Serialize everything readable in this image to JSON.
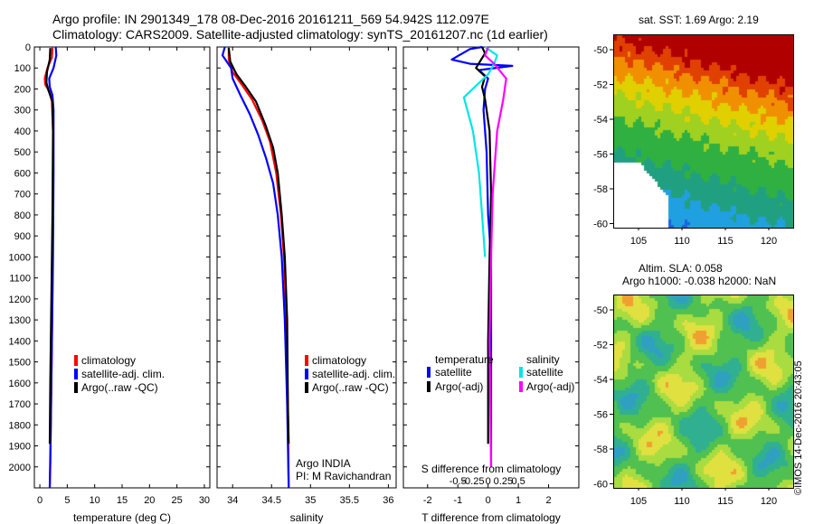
{
  "header": {
    "line1": "Argo profile: IN 2901349_178 08-Dec-2016 20161211_569 54.942S 112.097E",
    "line2": "Climatology: CARS2009. Satellite-adjusted climatology: synTS_20161207.nc (1d earlier)"
  },
  "colors": {
    "clim": "#ff0000",
    "sat": "#0000ff",
    "argo": "#000000",
    "sat_s": "#00e5e5",
    "argo_s": "#ff00ff"
  },
  "chart_data": [
    {
      "type": "line",
      "panel": "temperature",
      "xlabel": "temperature (deg C)",
      "xlim": [
        -1,
        31
      ],
      "ylim": [
        2100,
        0
      ],
      "xticks": [
        0,
        5,
        10,
        15,
        20,
        25,
        30
      ],
      "yticks": [
        0,
        100,
        200,
        300,
        400,
        500,
        600,
        700,
        800,
        900,
        1000,
        1100,
        1200,
        1300,
        1400,
        1500,
        1600,
        1700,
        1800,
        1900,
        2000
      ],
      "legend": [
        "climatology",
        "satellite-adj. clim.",
        "Argo(..raw -QC)"
      ],
      "series": [
        {
          "name": "climatology",
          "color": "#ff0000",
          "points": [
            [
              2.3,
              0
            ],
            [
              2.2,
              50
            ],
            [
              1.4,
              100
            ],
            [
              0.9,
              150
            ],
            [
              1.0,
              180
            ],
            [
              1.7,
              210
            ],
            [
              2.2,
              260
            ],
            [
              2.4,
              400
            ],
            [
              2.4,
              800
            ],
            [
              2.3,
              1200
            ],
            [
              2.1,
              1600
            ],
            [
              1.9,
              2000
            ],
            [
              1.8,
              2100
            ]
          ]
        },
        {
          "name": "satellite-adj. clim.",
          "color": "#0000ff",
          "points": [
            [
              2.9,
              0
            ],
            [
              3.0,
              40
            ],
            [
              2.5,
              100
            ],
            [
              1.7,
              150
            ],
            [
              1.8,
              190
            ],
            [
              2.3,
              230
            ],
            [
              2.5,
              300
            ],
            [
              2.5,
              600
            ],
            [
              2.4,
              1000
            ],
            [
              2.2,
              1400
            ],
            [
              2.0,
              1800
            ],
            [
              1.8,
              2100
            ]
          ]
        },
        {
          "name": "Argo(..raw -QC)",
          "color": "#000000",
          "points": [
            [
              1.9,
              5
            ],
            [
              1.8,
              60
            ],
            [
              1.3,
              120
            ],
            [
              1.2,
              170
            ],
            [
              1.6,
              210
            ],
            [
              2.3,
              260
            ],
            [
              2.4,
              400
            ],
            [
              2.3,
              800
            ],
            [
              2.1,
              1200
            ],
            [
              1.9,
              1600
            ],
            [
              1.8,
              1890
            ]
          ]
        }
      ]
    },
    {
      "type": "line",
      "panel": "salinity",
      "xlabel": "salinity",
      "xlim": [
        33.8,
        36.1
      ],
      "ylim": [
        2100,
        0
      ],
      "xticks": [
        34,
        34.5,
        35,
        35.5,
        36
      ],
      "xticklabels": [
        "34",
        "34.5",
        "35",
        "35.5",
        "36"
      ],
      "legend": [
        "climatology",
        "satellite-adj. clim.",
        "Argo(..raw -QC)"
      ],
      "annotation": [
        "Argo INDIA",
        "PI: M Ravichandran"
      ],
      "series": [
        {
          "name": "climatology",
          "color": "#ff0000",
          "points": [
            [
              33.95,
              0
            ],
            [
              33.95,
              60
            ],
            [
              34.0,
              120
            ],
            [
              34.1,
              170
            ],
            [
              34.25,
              250
            ],
            [
              34.38,
              350
            ],
            [
              34.48,
              450
            ],
            [
              34.56,
              600
            ],
            [
              34.62,
              800
            ],
            [
              34.66,
              1000
            ],
            [
              34.69,
              1300
            ],
            [
              34.71,
              1700
            ],
            [
              34.72,
              2100
            ]
          ]
        },
        {
          "name": "satellite-adj. clim.",
          "color": "#0000ff",
          "points": [
            [
              33.9,
              0
            ],
            [
              33.87,
              40
            ],
            [
              33.98,
              100
            ],
            [
              34.0,
              150
            ],
            [
              34.1,
              230
            ],
            [
              34.22,
              320
            ],
            [
              34.33,
              420
            ],
            [
              34.43,
              530
            ],
            [
              34.52,
              650
            ],
            [
              34.58,
              800
            ],
            [
              34.63,
              1000
            ],
            [
              34.67,
              1300
            ],
            [
              34.7,
              1700
            ],
            [
              34.72,
              2100
            ]
          ]
        },
        {
          "name": "Argo(..raw -QC)",
          "color": "#000000",
          "points": [
            [
              33.95,
              5
            ],
            [
              33.97,
              70
            ],
            [
              34.05,
              130
            ],
            [
              34.17,
              190
            ],
            [
              34.3,
              260
            ],
            [
              34.42,
              370
            ],
            [
              34.52,
              480
            ],
            [
              34.58,
              600
            ],
            [
              34.63,
              800
            ],
            [
              34.67,
              1000
            ],
            [
              34.7,
              1300
            ],
            [
              34.71,
              1700
            ],
            [
              34.72,
              1890
            ]
          ]
        }
      ]
    },
    {
      "type": "line",
      "panel": "difference",
      "xlabel": "T difference from climatology",
      "xlabel_top": "S difference from climatology",
      "xlim": [
        -2.8,
        3.0
      ],
      "ylim": [
        2100,
        0
      ],
      "xticks": [
        -2,
        -1,
        0,
        1,
        2
      ],
      "xticklabels": [
        "-2",
        "-1",
        "0",
        "1",
        "2"
      ],
      "sticks": [
        -1,
        -0.5,
        0,
        0.5,
        1
      ],
      "sticklabels": [
        "-0.5",
        "-0.25",
        "0",
        "0.25",
        "0.5"
      ],
      "legend_groups": {
        "temperature": {
          "title": "temperature",
          "items": [
            "satellite",
            "Argo(-adj)"
          ]
        },
        "salinity": {
          "title": "salinity",
          "items": [
            "satellite",
            "Argo(-adj)"
          ]
        }
      },
      "series": [
        {
          "name": "T satellite",
          "color": "#0000ff",
          "points": [
            [
              -0.2,
              0
            ],
            [
              -0.6,
              10
            ],
            [
              -1.2,
              60
            ],
            [
              -0.6,
              80
            ],
            [
              0.8,
              90
            ],
            [
              -0.3,
              110
            ],
            [
              0.0,
              150
            ],
            [
              -0.1,
              200
            ],
            [
              -0.15,
              300
            ],
            [
              -0.05,
              500
            ],
            [
              0.0,
              800
            ],
            [
              0.1,
              1000
            ],
            [
              0.1,
              1400
            ],
            [
              0.1,
              1800
            ],
            [
              0.1,
              2000
            ]
          ]
        },
        {
          "name": "T Argo(-adj)",
          "color": "#000000",
          "points": [
            [
              -0.2,
              0
            ],
            [
              -0.1,
              30
            ],
            [
              -0.4,
              100
            ],
            [
              -0.1,
              140
            ],
            [
              -0.2,
              190
            ],
            [
              -0.1,
              250
            ],
            [
              0.05,
              400
            ],
            [
              0.1,
              700
            ],
            [
              0.05,
              1000
            ],
            [
              0.0,
              1400
            ],
            [
              0.0,
              1890
            ]
          ]
        },
        {
          "name": "S satellite",
          "color": "#00e5e5",
          "points": [
            [
              -0.1,
              0
            ],
            [
              0.3,
              40
            ],
            [
              0.2,
              80
            ],
            [
              0.0,
              130
            ],
            [
              -0.8,
              240
            ],
            [
              -0.5,
              400
            ],
            [
              -0.3,
              600
            ],
            [
              -0.2,
              800
            ],
            [
              -0.1,
              1000
            ]
          ]
        },
        {
          "name": "S Argo(-adj)",
          "color": "#ff00ff",
          "points": [
            [
              0.0,
              0
            ],
            [
              -0.1,
              40
            ],
            [
              0.2,
              80
            ],
            [
              0.6,
              150
            ],
            [
              0.5,
              250
            ],
            [
              0.3,
              400
            ],
            [
              0.15,
              700
            ],
            [
              0.1,
              1000
            ],
            [
              0.05,
              1400
            ],
            [
              0.1,
              2000
            ]
          ]
        }
      ]
    }
  ],
  "maps": {
    "sst": {
      "title": "sat. SST: 1.69 Argo: 2.19",
      "xticks": [
        "105",
        "110",
        "115",
        "120"
      ],
      "yticks": [
        "-50",
        "-52",
        "-54",
        "-56",
        "-58",
        "-60"
      ]
    },
    "sla": {
      "title1": "Altim. SLA: 0.058",
      "title2": "Argo h1000: -0.038 h2000: NaN",
      "xticks": [
        "105",
        "110",
        "115",
        "120"
      ],
      "yticks": [
        "-50",
        "-52",
        "-54",
        "-56",
        "-58",
        "-60"
      ]
    }
  },
  "footer_stamp": "©IMOS 14-Dec-2016 20:43:05"
}
